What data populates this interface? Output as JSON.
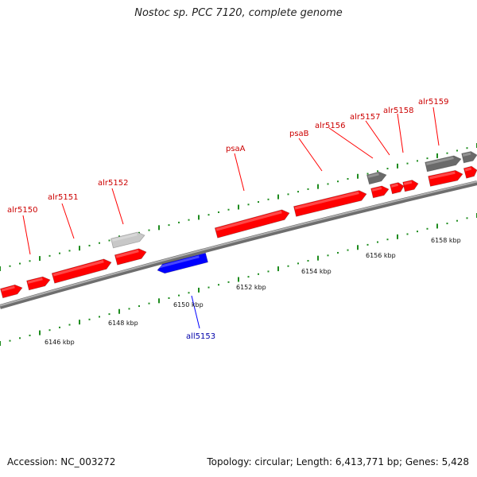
{
  "title": "Nostoc sp. PCC 7120, complete genome",
  "footer": {
    "accession": "Accession: NC_003272",
    "stats": "Topology: circular; Length: 6,413,771 bp; Genes: 5,428"
  },
  "colors": {
    "forward_gene": "#ff0000",
    "reverse_gene": "#0000ff",
    "feature_gray_light": "#c8c8c8",
    "feature_gray_dark": "#6a6a6a",
    "backbone": "#888888",
    "tick": "#1e8c1e",
    "forward_label": "#cc0000",
    "reverse_label": "#0000aa"
  },
  "gene_labels": [
    {
      "text": "alr5150"
    },
    {
      "text": "alr5151"
    },
    {
      "text": "alr5152"
    },
    {
      "text": "psaA"
    },
    {
      "text": "psaB"
    },
    {
      "text": "alr5156"
    },
    {
      "text": "alr5157"
    },
    {
      "text": "alr5158"
    },
    {
      "text": "alr5159"
    },
    {
      "text": "all5153"
    }
  ],
  "scale_labels": [
    {
      "text": "6146 kbp"
    },
    {
      "text": "6148 kbp"
    },
    {
      "text": "6150 kbp"
    },
    {
      "text": "6152 kbp"
    },
    {
      "text": "6154 kbp"
    },
    {
      "text": "6156 kbp"
    },
    {
      "text": "6158 kbp"
    }
  ]
}
